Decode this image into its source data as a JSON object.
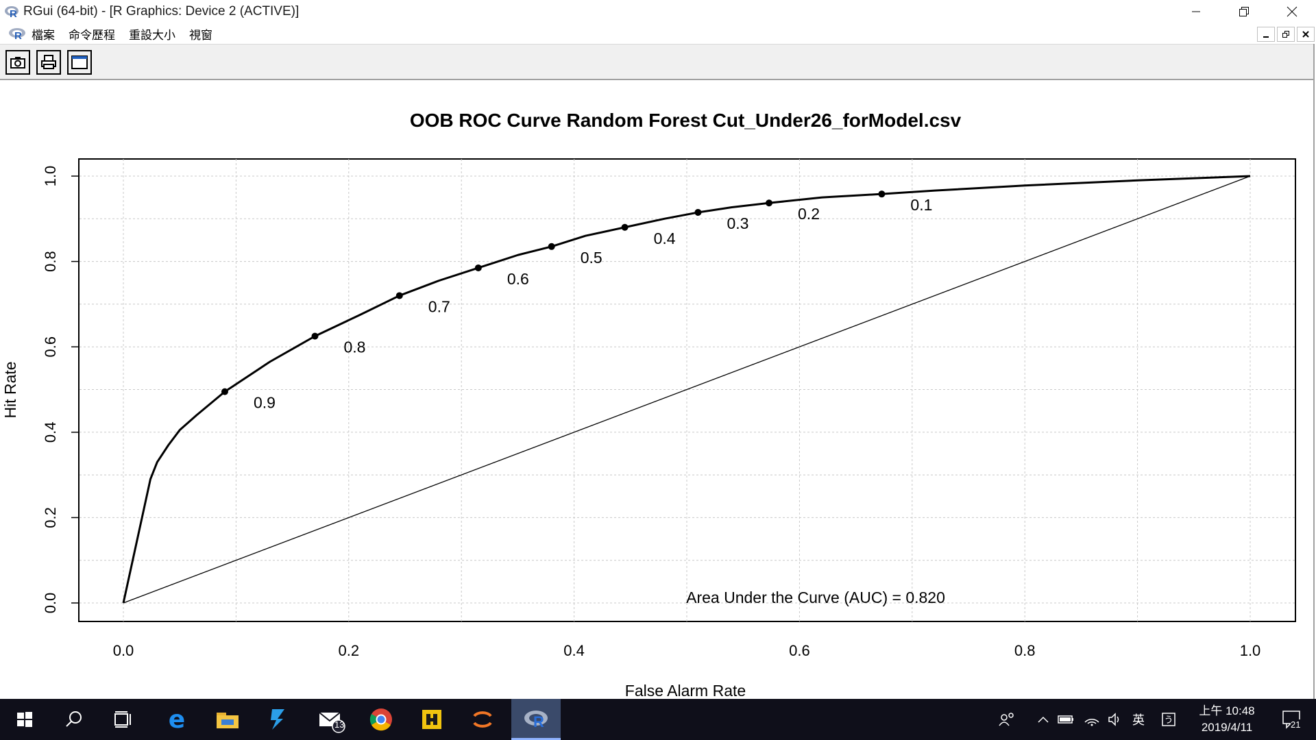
{
  "window": {
    "title": "RGui (64-bit) - [R Graphics: Device 2 (ACTIVE)]",
    "minimize_label": "minimize",
    "maximize_label": "restore",
    "close_label": "close"
  },
  "menu": {
    "items": [
      "檔案",
      "命令歷程",
      "重設大小",
      "視窗"
    ]
  },
  "toolbar": {
    "buttons": [
      "camera-icon",
      "printer-icon",
      "window-icon"
    ]
  },
  "chart_data": {
    "type": "line",
    "title": "OOB ROC Curve Random Forest Cut_Under26_forModel.csv",
    "xlabel": "False Alarm Rate",
    "ylabel": "Hit Rate",
    "xlim": [
      0.0,
      1.0
    ],
    "ylim": [
      0.0,
      1.0
    ],
    "xticks": [
      "0.0",
      "0.2",
      "0.4",
      "0.6",
      "0.8",
      "1.0"
    ],
    "yticks": [
      "0.0",
      "0.2",
      "0.4",
      "0.6",
      "0.8",
      "1.0"
    ],
    "grid": true,
    "series": [
      {
        "x": [
          0.0,
          0.024,
          0.03,
          0.04,
          0.05,
          0.065,
          0.09,
          0.13,
          0.17,
          0.21,
          0.245,
          0.28,
          0.315,
          0.35,
          0.38,
          0.41,
          0.445,
          0.48,
          0.51,
          0.54,
          0.573,
          0.62,
          0.673,
          0.72,
          0.8,
          0.9,
          1.0
        ],
        "y": [
          0.0,
          0.29,
          0.33,
          0.37,
          0.405,
          0.44,
          0.495,
          0.565,
          0.625,
          0.675,
          0.72,
          0.755,
          0.785,
          0.815,
          0.835,
          0.86,
          0.88,
          0.9,
          0.915,
          0.927,
          0.937,
          0.95,
          0.958,
          0.966,
          0.978,
          0.99,
          1.0
        ]
      },
      {
        "x": [
          0.0,
          1.0
        ],
        "y": [
          0.0,
          1.0
        ]
      }
    ],
    "cutoff_points": [
      {
        "label": "0.9",
        "x": 0.09,
        "y": 0.495
      },
      {
        "label": "0.8",
        "x": 0.17,
        "y": 0.625
      },
      {
        "label": "0.7",
        "x": 0.245,
        "y": 0.72
      },
      {
        "label": "0.6",
        "x": 0.315,
        "y": 0.785
      },
      {
        "label": "0.5",
        "x": 0.38,
        "y": 0.835
      },
      {
        "label": "0.4",
        "x": 0.445,
        "y": 0.88
      },
      {
        "label": "0.3",
        "x": 0.51,
        "y": 0.915
      },
      {
        "label": "0.2",
        "x": 0.573,
        "y": 0.937
      },
      {
        "label": "0.1",
        "x": 0.673,
        "y": 0.958
      }
    ],
    "annotation": "Area Under the Curve (AUC) = 0.820"
  },
  "taskbar": {
    "apps": [
      "windows-start-icon",
      "search-icon",
      "task-view-icon",
      "edge-icon",
      "file-explorer-icon",
      "visual-studio-icon",
      "mail-icon",
      "chrome-icon",
      "matlab-icon",
      "jupyter-icon",
      "r-icon"
    ],
    "mail_badge": "13",
    "tray_ime": "英",
    "clock_time": "上午 10:48",
    "clock_date": "2019/4/11",
    "notification_count": "21"
  },
  "colors": {
    "taskbar_bg": "#0f0f1a",
    "active_app_highlight": "#3a4a6a",
    "plot_line": "#000000",
    "grid": "#c8c8c8"
  }
}
